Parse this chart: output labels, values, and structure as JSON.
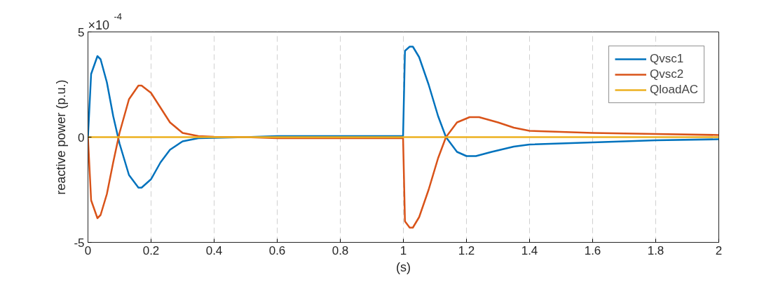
{
  "chart_data": {
    "type": "line",
    "xlabel": "(s)",
    "ylabel": "reactive power (p.u.)",
    "annotations": [
      "×10$^{-4}$"
    ],
    "xlim": [
      0,
      2
    ],
    "xticks": [
      0,
      0.2,
      0.4,
      0.6,
      0.8,
      1,
      1.2,
      1.4,
      1.6,
      1.8,
      2
    ],
    "ylim": [
      -5,
      5
    ],
    "yticks": [
      -5,
      0,
      5
    ],
    "grid": "x",
    "legend": "top right",
    "line_style": "solid",
    "series": [
      {
        "name": "Qvsc1",
        "color": "#0072bd",
        "x": [
          0,
          0.01,
          0.03,
          0.04,
          0.06,
          0.08,
          0.1,
          0.13,
          0.16,
          0.17,
          0.2,
          0.23,
          0.26,
          0.3,
          0.35,
          0.4,
          0.5,
          0.6,
          0.8,
          0.999,
          1.005,
          1.02,
          1.03,
          1.05,
          1.08,
          1.11,
          1.135,
          1.17,
          1.2,
          1.23,
          1.28,
          1.35,
          1.4,
          1.6,
          1.8,
          2
        ],
        "values": [
          0,
          3.0,
          3.85,
          3.7,
          2.6,
          1.0,
          -0.3,
          -1.8,
          -2.4,
          -2.4,
          -2.0,
          -1.2,
          -0.6,
          -0.2,
          -0.05,
          -0.03,
          0,
          0.05,
          0.05,
          0.05,
          4.1,
          4.3,
          4.3,
          3.8,
          2.5,
          1.0,
          0,
          -0.7,
          -0.9,
          -0.9,
          -0.7,
          -0.45,
          -0.35,
          -0.25,
          -0.15,
          -0.1
        ]
      },
      {
        "name": "Qvsc2",
        "color": "#d95319",
        "x": [
          0,
          0.01,
          0.03,
          0.04,
          0.06,
          0.08,
          0.1,
          0.13,
          0.16,
          0.17,
          0.2,
          0.23,
          0.26,
          0.3,
          0.35,
          0.4,
          0.5,
          0.6,
          0.8,
          0.999,
          1.005,
          1.02,
          1.03,
          1.05,
          1.08,
          1.11,
          1.135,
          1.17,
          1.21,
          1.24,
          1.3,
          1.35,
          1.4,
          1.6,
          1.8,
          2
        ],
        "values": [
          0,
          -3.0,
          -3.85,
          -3.7,
          -2.7,
          -1.2,
          0.2,
          1.8,
          2.45,
          2.45,
          2.1,
          1.4,
          0.7,
          0.2,
          0.05,
          0.02,
          0,
          -0.05,
          -0.05,
          -0.05,
          -4.0,
          -4.3,
          -4.3,
          -3.8,
          -2.5,
          -1.0,
          0,
          0.7,
          0.95,
          0.95,
          0.7,
          0.45,
          0.3,
          0.2,
          0.15,
          0.1
        ]
      },
      {
        "name": "QloadAC",
        "color": "#edb120",
        "x": [
          0,
          2
        ],
        "values": [
          0,
          0
        ]
      }
    ]
  }
}
